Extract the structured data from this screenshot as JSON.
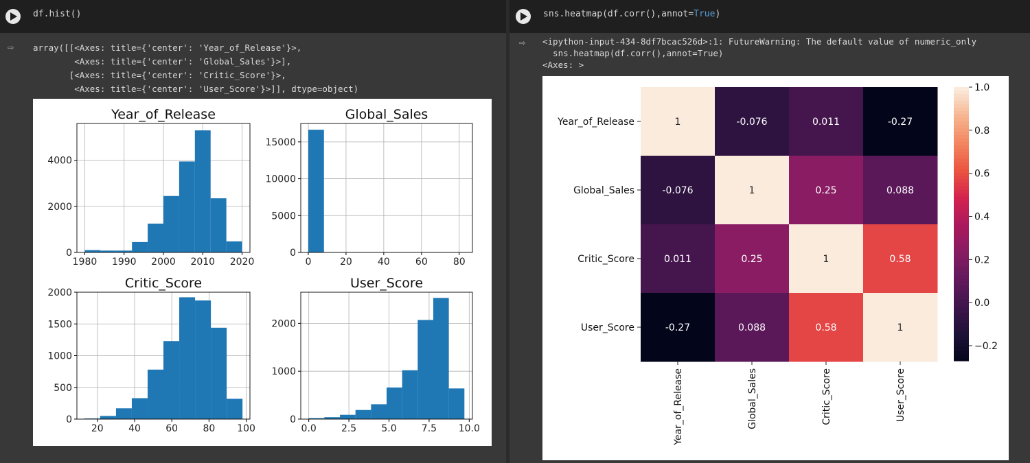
{
  "left_cell": {
    "code": "df.hist()",
    "output_lines": [
      "array([[<Axes: title={'center': 'Year_of_Release'}>,",
      "        <Axes: title={'center': 'Global_Sales'}>],",
      "       [<Axes: title={'center': 'Critic_Score'}>,",
      "        <Axes: title={'center': 'User_Score'}>]], dtype=object)"
    ]
  },
  "right_cell": {
    "code_prefix": "sns.heatmap(df.corr(),annot=",
    "code_keyword": "True",
    "code_suffix": ")",
    "output_lines": [
      "<ipython-input-434-8df7bcac526d>:1: FutureWarning: The default value of numeric_only",
      "  sns.heatmap(df.corr(),annot=True)",
      "<Axes: >"
    ]
  },
  "chart_data": [
    {
      "type": "bar",
      "title": "Year_of_Release",
      "bin_edges": [
        1980,
        1984,
        1988,
        1992,
        1996,
        2000,
        2004,
        2008,
        2012,
        2016,
        2020
      ],
      "values": [
        100,
        80,
        80,
        450,
        1250,
        2450,
        3950,
        5300,
        2350,
        480
      ],
      "xticks": [
        1980,
        1990,
        2000,
        2010,
        2020
      ],
      "yticks": [
        0,
        2000,
        4000
      ],
      "xlim": [
        1978,
        2022
      ],
      "ylim": [
        0,
        5600
      ],
      "grid": true
    },
    {
      "type": "bar",
      "title": "Global_Sales",
      "bin_edges": [
        0,
        8.3,
        16.6,
        24.9,
        33.2,
        41.5,
        49.8,
        58.1,
        66.4,
        74.7,
        83
      ],
      "values": [
        16650,
        0,
        0,
        0,
        0,
        0,
        0,
        0,
        0,
        0
      ],
      "xticks": [
        0,
        20,
        40,
        60,
        80
      ],
      "yticks": [
        0,
        5000,
        10000,
        15000
      ],
      "xlim": [
        -4,
        87
      ],
      "ylim": [
        0,
        17500
      ],
      "grid": true
    },
    {
      "type": "bar",
      "title": "Critic_Score",
      "bin_edges": [
        13,
        21.5,
        30,
        38.5,
        47,
        55.5,
        64,
        72.5,
        81,
        89.5,
        98
      ],
      "values": [
        10,
        50,
        170,
        330,
        780,
        1230,
        1920,
        1870,
        1440,
        320
      ],
      "xticks": [
        20,
        40,
        60,
        80,
        100
      ],
      "yticks": [
        0,
        500,
        1000,
        1500,
        2000
      ],
      "xlim": [
        9,
        102
      ],
      "ylim": [
        0,
        2000
      ],
      "grid": true
    },
    {
      "type": "bar",
      "title": "User_Score",
      "bin_edges": [
        0,
        0.97,
        1.94,
        2.91,
        3.88,
        4.85,
        5.82,
        6.79,
        7.76,
        8.73,
        9.7
      ],
      "values": [
        20,
        40,
        90,
        190,
        310,
        660,
        1020,
        2070,
        2530,
        640
      ],
      "xticks": [
        0.0,
        2.5,
        5.0,
        7.5,
        10.0
      ],
      "yticks": [
        0,
        1000,
        2000
      ],
      "xlim": [
        -0.5,
        10.2
      ],
      "ylim": [
        0,
        2650
      ],
      "grid": true
    },
    {
      "type": "heatmap",
      "labels": [
        "Year_of_Release",
        "Global_Sales",
        "Critic_Score",
        "User_Score"
      ],
      "matrix": [
        [
          1,
          -0.076,
          0.011,
          -0.27
        ],
        [
          -0.076,
          1,
          0.25,
          0.088
        ],
        [
          0.011,
          0.25,
          1,
          0.58
        ],
        [
          -0.27,
          0.088,
          0.58,
          1
        ]
      ],
      "annotations": [
        [
          "1",
          "-0.076",
          "0.011",
          "-0.27"
        ],
        [
          "-0.076",
          "1",
          "0.25",
          "0.088"
        ],
        [
          "0.011",
          "0.25",
          "1",
          "0.58"
        ],
        [
          "-0.27",
          "0.088",
          "0.58",
          "1"
        ]
      ],
      "colorbar_ticks": [
        "1.0",
        "0.8",
        "0.6",
        "0.4",
        "0.2",
        "0.0",
        "−0.2"
      ],
      "colorbar_tick_values": [
        1.0,
        0.8,
        0.6,
        0.4,
        0.2,
        0.0,
        -0.2
      ],
      "vmin": -0.27,
      "vmax": 1.0,
      "colormap": "rocket"
    }
  ],
  "colors": {
    "bar": "#1f77b4",
    "grid": "#b0b0b0",
    "cell_bg": "#383838",
    "input_bg": "#1f1f1f"
  }
}
